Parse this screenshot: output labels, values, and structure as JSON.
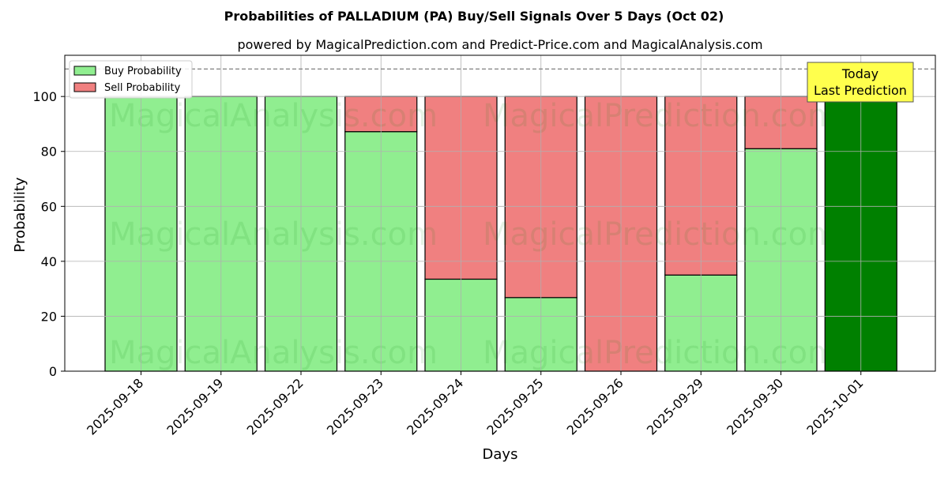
{
  "chart_data": {
    "type": "bar",
    "title": "Probabilities of PALLADIUM (PA) Buy/Sell Signals Over 5 Days (Oct 02)",
    "subtitle": "powered by MagicalPrediction.com and Predict-Price.com and MagicalAnalysis.com",
    "xlabel": "Days",
    "ylabel": "Probability",
    "ylim": [
      0,
      115
    ],
    "yticks": [
      0,
      20,
      40,
      60,
      80,
      100
    ],
    "reference_line": 110,
    "grid": true,
    "legend_position": "top-left",
    "categories": [
      "2025-09-18",
      "2025-09-19",
      "2025-09-22",
      "2025-09-23",
      "2025-09-24",
      "2025-09-25",
      "2025-09-26",
      "2025-09-29",
      "2025-09-30",
      "2025-10-01"
    ],
    "series": [
      {
        "name": "Buy Probability",
        "color": "#90ee90",
        "values": [
          100,
          100,
          100,
          87.2,
          33.5,
          26.8,
          0,
          35,
          81,
          100
        ]
      },
      {
        "name": "Sell Probability",
        "color": "#f08080",
        "values": [
          0,
          0,
          0,
          12.8,
          66.5,
          73.2,
          100,
          65,
          19,
          0
        ]
      }
    ],
    "highlight": {
      "index": 9,
      "color": "#008000"
    },
    "annotation": {
      "line1": "Today",
      "line2": "Last Prediction",
      "color": "#ffff4d"
    },
    "watermarks": [
      "MagicalAnalysis.com",
      "MagicalPrediction.com"
    ]
  }
}
